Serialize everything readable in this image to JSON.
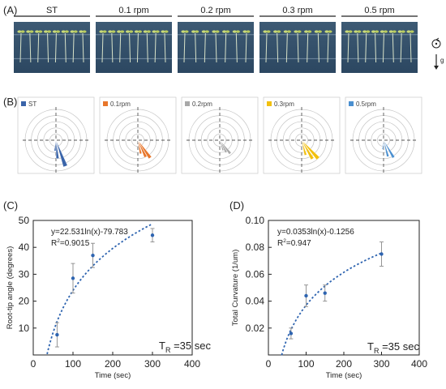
{
  "panels": {
    "A": {
      "label": "(A)",
      "conditions": [
        "ST",
        "0.1 rpm",
        "0.2 rpm",
        "0.3 rpm",
        "0.5 rpm"
      ],
      "gravity_label": "g",
      "seedling_count": [
        8,
        8,
        7,
        7,
        8
      ]
    },
    "B": {
      "label": "(B)",
      "legend": [
        "ST",
        "0.1rpm",
        "0.2rpm",
        "0.3rpm",
        "0.5rpm"
      ],
      "colors": [
        "#3a64a9",
        "#e8762b",
        "#a8a8a8",
        "#f2c00f",
        "#4a8fd0"
      ],
      "rings": 5,
      "petals": [
        [
          {
            "angle": 20,
            "length": 0.9,
            "width": 9
          },
          {
            "angle": 5,
            "length": 0.6,
            "width": 9
          },
          {
            "angle": -5,
            "length": 0.35,
            "width": 9
          }
        ],
        [
          {
            "angle": 35,
            "length": 0.7,
            "width": 9
          },
          {
            "angle": 25,
            "length": 0.6,
            "width": 9
          },
          {
            "angle": 12,
            "length": 0.45,
            "width": 9
          }
        ],
        [
          {
            "angle": 38,
            "length": 0.55,
            "width": 9
          },
          {
            "angle": 28,
            "length": 0.45,
            "width": 9
          },
          {
            "angle": 18,
            "length": 0.35,
            "width": 9
          }
        ],
        [
          {
            "angle": 42,
            "length": 0.8,
            "width": 9
          },
          {
            "angle": 30,
            "length": 0.7,
            "width": 9
          },
          {
            "angle": 15,
            "length": 0.5,
            "width": 9
          }
        ],
        [
          {
            "angle": 30,
            "length": 0.65,
            "width": 8
          },
          {
            "angle": 15,
            "length": 0.55,
            "width": 8
          },
          {
            "angle": -5,
            "length": 0.3,
            "width": 8
          }
        ]
      ]
    },
    "C": {
      "label": "(C)",
      "equation": "y=22.531ln(x)-79.783",
      "r2_prefix": "R",
      "r2_sup": "2",
      "r2_value": "=0.9015",
      "tr_main": "T",
      "tr_sub": "R",
      "tr_value": " =35 sec"
    },
    "D": {
      "label": "(D)",
      "equation": "y=0.0353ln(x)-0.1256",
      "r2_prefix": "R",
      "r2_sup": "2",
      "r2_value": "=0.947",
      "tr_main": "T",
      "tr_sub": "R",
      "tr_value": " =35 sec"
    }
  },
  "chart_data": [
    {
      "type": "scatter",
      "panel": "C",
      "xlabel": "Time (sec)",
      "ylabel": "Root-tip angle (degrees)",
      "xlim": [
        0,
        400
      ],
      "ylim": [
        0,
        50
      ],
      "xticks": [
        0,
        100,
        200,
        300,
        400
      ],
      "yticks": [
        10,
        20,
        30,
        40,
        50
      ],
      "color": "#2e64b0",
      "points": [
        {
          "x": 60,
          "y": 7.5,
          "err": 4.5
        },
        {
          "x": 100,
          "y": 28.5,
          "err": 5.5
        },
        {
          "x": 150,
          "y": 37,
          "err": 4.5
        },
        {
          "x": 300,
          "y": 44.5,
          "err": 2.5
        }
      ],
      "fit": {
        "type": "log",
        "a": 22.531,
        "b": -79.783,
        "x_from": 35,
        "x_to": 300
      }
    },
    {
      "type": "scatter",
      "panel": "D",
      "xlabel": "Time (sec)",
      "ylabel": "Total Curvature (1/um)",
      "xlim": [
        0,
        400
      ],
      "ylim": [
        0,
        0.1
      ],
      "xticks": [
        0,
        100,
        200,
        300,
        400
      ],
      "yticks": [
        0.02,
        0.04,
        0.06,
        0.08,
        0.1
      ],
      "ytick_labels": [
        "0.02",
        "0.04",
        "0.06",
        "0.08",
        "0.10"
      ],
      "color": "#2e64b0",
      "points": [
        {
          "x": 60,
          "y": 0.016,
          "err": 0.004
        },
        {
          "x": 100,
          "y": 0.044,
          "err": 0.008
        },
        {
          "x": 150,
          "y": 0.046,
          "err": 0.006
        },
        {
          "x": 300,
          "y": 0.075,
          "err": 0.009
        }
      ],
      "fit": {
        "type": "log",
        "a": 0.0353,
        "b": -0.1256,
        "x_from": 35,
        "x_to": 300
      }
    }
  ]
}
